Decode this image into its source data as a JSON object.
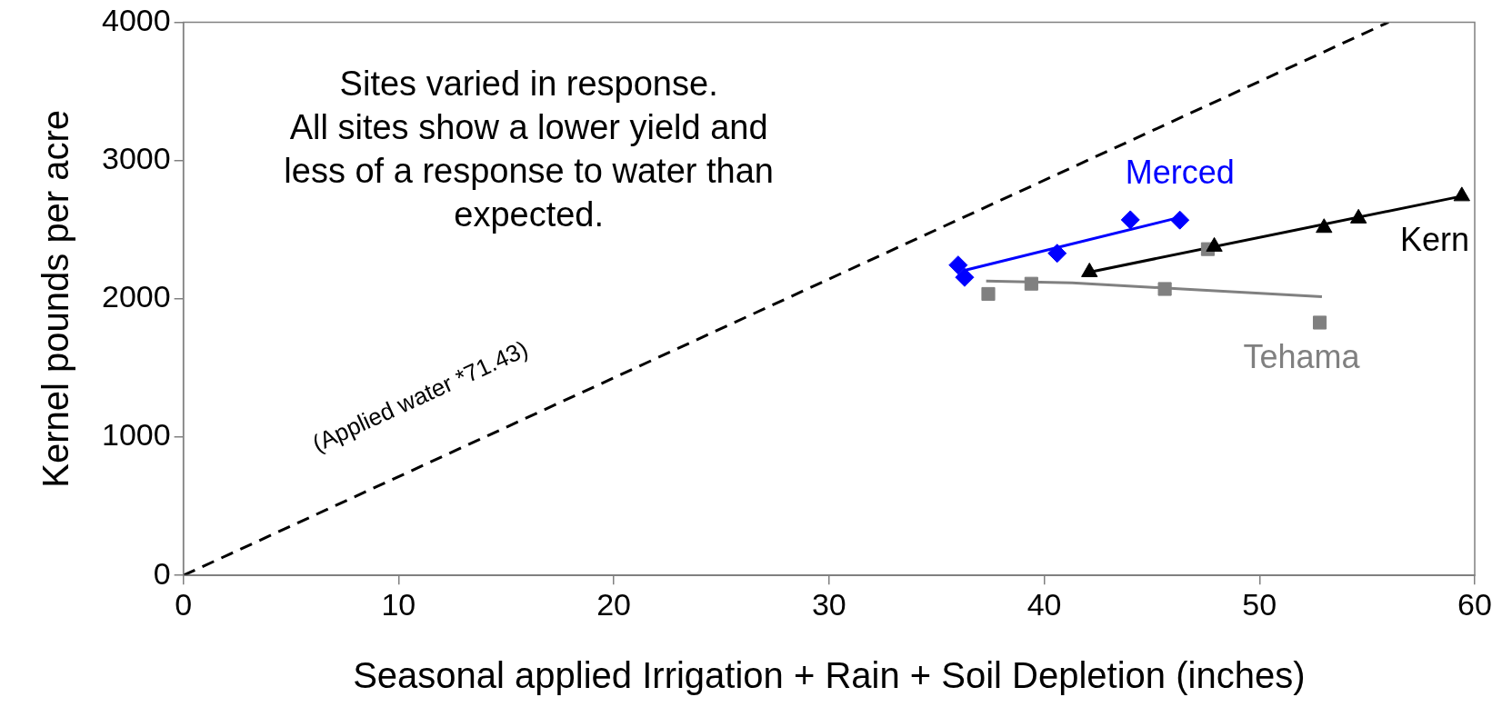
{
  "chart_data": {
    "type": "scatter",
    "xlabel": "Seasonal applied Irrigation + Rain + Soil Depletion (inches)",
    "ylabel": "Kernel pounds per acre",
    "xlim": [
      0,
      60
    ],
    "xticks": [
      0,
      10,
      20,
      30,
      40,
      50,
      60
    ],
    "ylim": [
      0,
      4000
    ],
    "yticks": [
      0,
      1000,
      2000,
      3000,
      4000
    ],
    "grid": false,
    "legend": false,
    "series": [
      {
        "type": "line",
        "color": "#000000",
        "line_style": "dashed",
        "marker": "none",
        "x": [
          0,
          56
        ],
        "values": [
          0,
          4000
        ]
      },
      {
        "name": "Merced",
        "color": "#0000ff",
        "marker": "diamond",
        "x": [
          36.0,
          36.3,
          40.6,
          44.0,
          46.3
        ],
        "values": [
          2244,
          2155,
          2329,
          2571,
          2569
        ]
      },
      {
        "type": "line",
        "color": "#0000ff",
        "marker": "none",
        "x": [
          36.3,
          46.3
        ],
        "values": [
          2206,
          2589
        ]
      },
      {
        "name": "Kern",
        "color": "#000000",
        "marker": "triangle",
        "x": [
          42.1,
          47.9,
          53.0,
          54.6,
          59.4
        ],
        "values": [
          2193,
          2377,
          2513,
          2581,
          2742
        ]
      },
      {
        "type": "line",
        "color": "#000000",
        "marker": "none",
        "x": [
          42.1,
          59.4
        ],
        "values": [
          2193,
          2742
        ]
      },
      {
        "name": "Tehama",
        "color": "#808080",
        "marker": "square",
        "x": [
          37.4,
          39.4,
          45.6,
          47.6,
          52.8
        ],
        "values": [
          2035,
          2109,
          2071,
          2359,
          1828
        ]
      },
      {
        "type": "line",
        "color": "#808080",
        "marker": "none",
        "x": [
          37.3,
          41.3,
          46.4,
          52.9
        ],
        "values": [
          2129,
          2116,
          2071,
          2015
        ]
      }
    ],
    "annotations": [
      "Sites varied in response.\nAll sites show a lower yield and\nless of a response to water than\nexpected.",
      "(Applied water *71.43)"
    ]
  }
}
